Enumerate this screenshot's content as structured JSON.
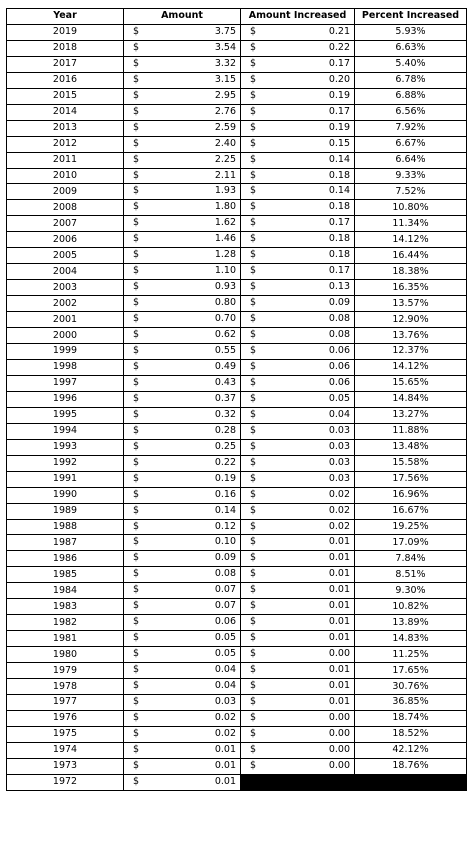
{
  "columns": {
    "year": "Year",
    "amount": "Amount",
    "amount_increased": "Amount Increased",
    "percent_increased": "Percent Increased"
  },
  "currency": "$",
  "rows": [
    {
      "year": "2019",
      "amount": "3.75",
      "increase": "0.21",
      "percent": "5.93%"
    },
    {
      "year": "2018",
      "amount": "3.54",
      "increase": "0.22",
      "percent": "6.63%"
    },
    {
      "year": "2017",
      "amount": "3.32",
      "increase": "0.17",
      "percent": "5.40%"
    },
    {
      "year": "2016",
      "amount": "3.15",
      "increase": "0.20",
      "percent": "6.78%"
    },
    {
      "year": "2015",
      "amount": "2.95",
      "increase": "0.19",
      "percent": "6.88%"
    },
    {
      "year": "2014",
      "amount": "2.76",
      "increase": "0.17",
      "percent": "6.56%"
    },
    {
      "year": "2013",
      "amount": "2.59",
      "increase": "0.19",
      "percent": "7.92%"
    },
    {
      "year": "2012",
      "amount": "2.40",
      "increase": "0.15",
      "percent": "6.67%"
    },
    {
      "year": "2011",
      "amount": "2.25",
      "increase": "0.14",
      "percent": "6.64%"
    },
    {
      "year": "2010",
      "amount": "2.11",
      "increase": "0.18",
      "percent": "9.33%"
    },
    {
      "year": "2009",
      "amount": "1.93",
      "increase": "0.14",
      "percent": "7.52%"
    },
    {
      "year": "2008",
      "amount": "1.80",
      "increase": "0.18",
      "percent": "10.80%"
    },
    {
      "year": "2007",
      "amount": "1.62",
      "increase": "0.17",
      "percent": "11.34%"
    },
    {
      "year": "2006",
      "amount": "1.46",
      "increase": "0.18",
      "percent": "14.12%"
    },
    {
      "year": "2005",
      "amount": "1.28",
      "increase": "0.18",
      "percent": "16.44%"
    },
    {
      "year": "2004",
      "amount": "1.10",
      "increase": "0.17",
      "percent": "18.38%"
    },
    {
      "year": "2003",
      "amount": "0.93",
      "increase": "0.13",
      "percent": "16.35%"
    },
    {
      "year": "2002",
      "amount": "0.80",
      "increase": "0.09",
      "percent": "13.57%"
    },
    {
      "year": "2001",
      "amount": "0.70",
      "increase": "0.08",
      "percent": "12.90%"
    },
    {
      "year": "2000",
      "amount": "0.62",
      "increase": "0.08",
      "percent": "13.76%"
    },
    {
      "year": "1999",
      "amount": "0.55",
      "increase": "0.06",
      "percent": "12.37%"
    },
    {
      "year": "1998",
      "amount": "0.49",
      "increase": "0.06",
      "percent": "14.12%"
    },
    {
      "year": "1997",
      "amount": "0.43",
      "increase": "0.06",
      "percent": "15.65%"
    },
    {
      "year": "1996",
      "amount": "0.37",
      "increase": "0.05",
      "percent": "14.84%"
    },
    {
      "year": "1995",
      "amount": "0.32",
      "increase": "0.04",
      "percent": "13.27%"
    },
    {
      "year": "1994",
      "amount": "0.28",
      "increase": "0.03",
      "percent": "11.88%"
    },
    {
      "year": "1993",
      "amount": "0.25",
      "increase": "0.03",
      "percent": "13.48%"
    },
    {
      "year": "1992",
      "amount": "0.22",
      "increase": "0.03",
      "percent": "15.58%"
    },
    {
      "year": "1991",
      "amount": "0.19",
      "increase": "0.03",
      "percent": "17.56%"
    },
    {
      "year": "1990",
      "amount": "0.16",
      "increase": "0.02",
      "percent": "16.96%"
    },
    {
      "year": "1989",
      "amount": "0.14",
      "increase": "0.02",
      "percent": "16.67%"
    },
    {
      "year": "1988",
      "amount": "0.12",
      "increase": "0.02",
      "percent": "19.25%"
    },
    {
      "year": "1987",
      "amount": "0.10",
      "increase": "0.01",
      "percent": "17.09%"
    },
    {
      "year": "1986",
      "amount": "0.09",
      "increase": "0.01",
      "percent": "7.84%"
    },
    {
      "year": "1985",
      "amount": "0.08",
      "increase": "0.01",
      "percent": "8.51%"
    },
    {
      "year": "1984",
      "amount": "0.07",
      "increase": "0.01",
      "percent": "9.30%"
    },
    {
      "year": "1983",
      "amount": "0.07",
      "increase": "0.01",
      "percent": "10.82%"
    },
    {
      "year": "1982",
      "amount": "0.06",
      "increase": "0.01",
      "percent": "13.89%"
    },
    {
      "year": "1981",
      "amount": "0.05",
      "increase": "0.01",
      "percent": "14.83%"
    },
    {
      "year": "1980",
      "amount": "0.05",
      "increase": "0.00",
      "percent": "11.25%"
    },
    {
      "year": "1979",
      "amount": "0.04",
      "increase": "0.01",
      "percent": "17.65%"
    },
    {
      "year": "1978",
      "amount": "0.04",
      "increase": "0.01",
      "percent": "30.76%"
    },
    {
      "year": "1977",
      "amount": "0.03",
      "increase": "0.01",
      "percent": "36.85%"
    },
    {
      "year": "1976",
      "amount": "0.02",
      "increase": "0.00",
      "percent": "18.74%"
    },
    {
      "year": "1975",
      "amount": "0.02",
      "increase": "0.00",
      "percent": "18.52%"
    },
    {
      "year": "1974",
      "amount": "0.01",
      "increase": "0.00",
      "percent": "42.12%"
    },
    {
      "year": "1973",
      "amount": "0.01",
      "increase": "0.00",
      "percent": "18.76%"
    },
    {
      "year": "1972",
      "amount": "0.01",
      "increase": null,
      "percent": null
    }
  ]
}
